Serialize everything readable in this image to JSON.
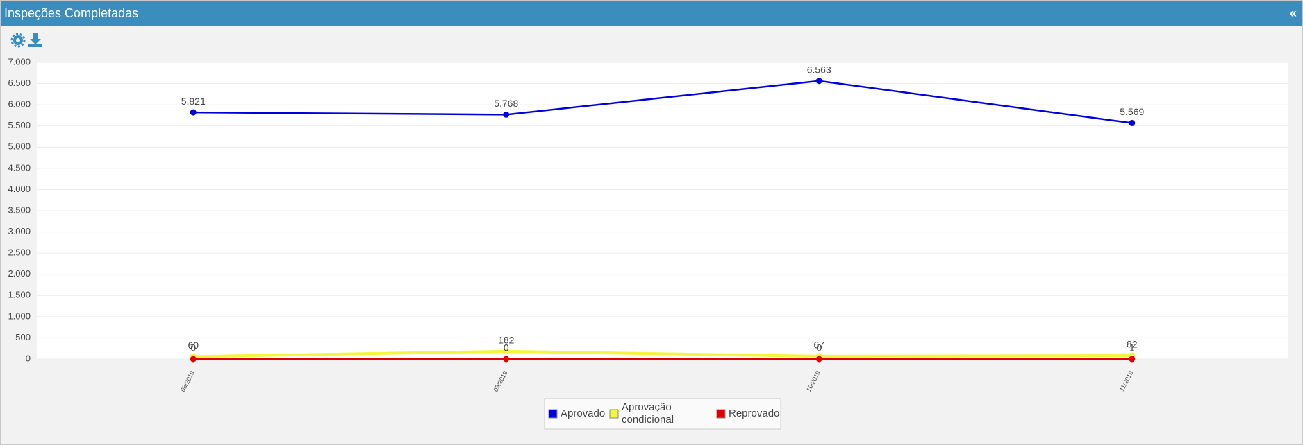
{
  "header": {
    "title": "Inspeções Completadas",
    "collapse": "«"
  },
  "chart_data": {
    "type": "line",
    "categories": [
      "08/2019",
      "09/2019",
      "10/2019",
      "11/2019"
    ],
    "series": [
      {
        "name": "Aprovado",
        "color": "#0000dd",
        "values": [
          5821,
          5768,
          6563,
          5569
        ],
        "value_labels": [
          "5.821",
          "5.768",
          "6.563",
          "5.569"
        ]
      },
      {
        "name": "Aprovação condicional",
        "color": "#f5f53a",
        "values": [
          60,
          182,
          67,
          82
        ]
      },
      {
        "name": "Reprovado",
        "color": "#e00000",
        "values": [
          0,
          0,
          0,
          1
        ]
      }
    ],
    "ylim": [
      0,
      7000
    ],
    "yticks": [
      0,
      500,
      {
        "value": 1000,
        "label": "1.000"
      },
      {
        "value": 1500,
        "label": "1.500"
      },
      {
        "value": 2000,
        "label": "2.000"
      },
      {
        "value": 2500,
        "label": "2.500"
      },
      {
        "value": 3000,
        "label": "3.000"
      },
      {
        "value": 3500,
        "label": "3.500"
      },
      {
        "value": 4000,
        "label": "4.000"
      },
      {
        "value": 4500,
        "label": "4.500"
      },
      {
        "value": 5000,
        "label": "5.000"
      },
      {
        "value": 5500,
        "label": "5.500"
      },
      {
        "value": 6000,
        "label": "6.000"
      },
      {
        "value": 6500,
        "label": "6.500"
      },
      {
        "value": 7000,
        "label": "7.000"
      }
    ],
    "grid": true
  }
}
